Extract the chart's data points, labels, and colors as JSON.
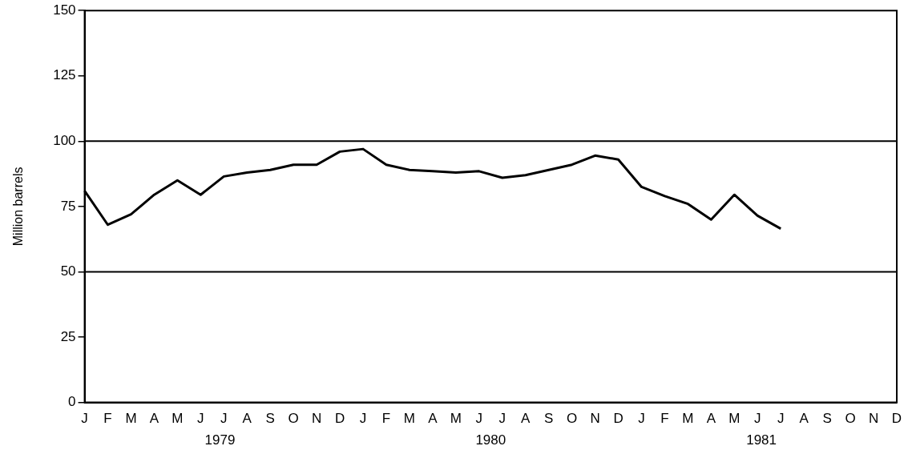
{
  "chart_data": {
    "type": "line",
    "ylabel": "Million barrels",
    "categories": [
      "J",
      "F",
      "M",
      "A",
      "M",
      "J",
      "J",
      "A",
      "S",
      "O",
      "N",
      "D",
      "J",
      "F",
      "M",
      "A",
      "M",
      "J",
      "J",
      "A",
      "S",
      "O",
      "N",
      "D",
      "J",
      "F",
      "M",
      "A",
      "M",
      "J",
      "J",
      "A",
      "S",
      "O",
      "N",
      "D"
    ],
    "series": [
      {
        "color": "#000000",
        "values": [
          81,
          68,
          72,
          79.5,
          85,
          79.5,
          86.5,
          88,
          89,
          91,
          91,
          96,
          97,
          91,
          89,
          88.5,
          88,
          88.5,
          86,
          87,
          89,
          91,
          94.5,
          93,
          82.5,
          79,
          76,
          70,
          79.5,
          71.5,
          66.5,
          null,
          null,
          null,
          null,
          null
        ]
      }
    ],
    "ylim": [
      0,
      150
    ],
    "yticks": [
      0,
      25,
      50,
      75,
      100,
      125,
      150
    ],
    "ref_lines": [
      {
        "axis": "y",
        "value": 50,
        "color": "#000000"
      },
      {
        "axis": "y",
        "value": 100,
        "color": "#000000"
      }
    ],
    "annotations": [
      "1979",
      "1980",
      "1981"
    ],
    "grid": false,
    "legend": false,
    "marker": "none",
    "line_style": "solid"
  }
}
